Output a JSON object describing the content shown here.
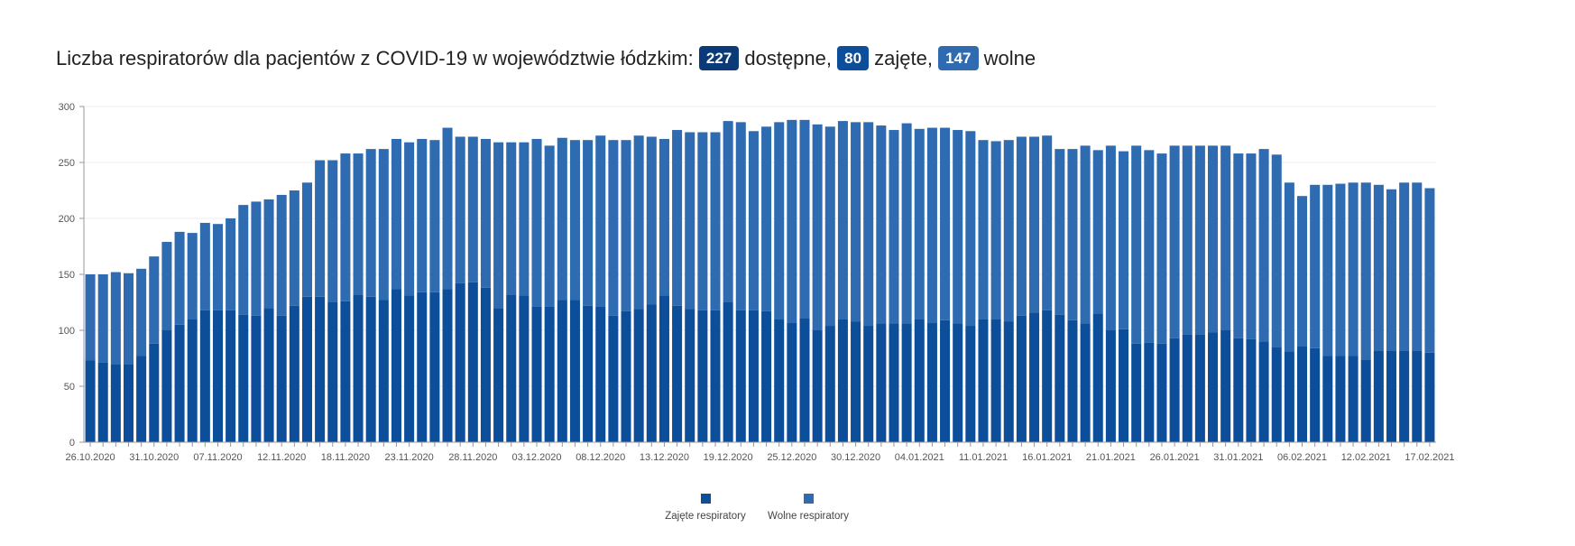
{
  "header": {
    "title_text": "Liczba respiratorów dla pacjentów z COVID-19 w województwie łódzkim:",
    "available_value": "227",
    "available_label": "dostępne,",
    "occupied_value": "80",
    "occupied_label": "zajęte,",
    "free_value": "147",
    "free_label": "wolne"
  },
  "colors": {
    "occupied": "#0d4e9b",
    "free": "#2f6bb0",
    "badge_available": "#0b3a78",
    "badge_occupied": "#0d4e9b",
    "badge_free": "#2f6bb0",
    "gridline": "#eeeeee",
    "axis": "#999999"
  },
  "chart_data": {
    "type": "bar",
    "stacked": true,
    "ylim": [
      0,
      300
    ],
    "yticks": [
      0,
      50,
      100,
      150,
      200,
      250,
      300
    ],
    "xlabel": "",
    "ylabel": "",
    "grid": true,
    "legend_position": "bottom-center",
    "x_tick_labels": [
      "26.10.2020",
      "31.10.2020",
      "07.11.2020",
      "12.11.2020",
      "18.11.2020",
      "23.11.2020",
      "28.11.2020",
      "03.12.2020",
      "08.12.2020",
      "13.12.2020",
      "19.12.2020",
      "25.12.2020",
      "30.12.2020",
      "04.01.2021",
      "11.01.2021",
      "16.01.2021",
      "21.01.2021",
      "26.01.2021",
      "31.01.2021",
      "06.02.2021",
      "12.02.2021",
      "17.02.2021"
    ],
    "x_tick_bar_index": [
      0,
      5,
      10,
      15,
      20,
      25,
      30,
      35,
      40,
      45,
      50,
      55,
      60,
      65,
      70,
      75,
      80,
      85,
      90,
      95,
      100,
      105
    ],
    "series": [
      {
        "name": "Zajęte respiratory",
        "color": "#0d4e9b",
        "values": [
          73,
          71,
          70,
          70,
          77,
          88,
          100,
          105,
          110,
          118,
          118,
          118,
          114,
          113,
          120,
          113,
          122,
          130,
          130,
          125,
          126,
          132,
          130,
          127,
          137,
          131,
          134,
          134,
          137,
          142,
          143,
          138,
          120,
          132,
          131,
          121,
          121,
          127,
          127,
          122,
          121,
          113,
          117,
          119,
          123,
          131,
          122,
          119,
          118,
          118,
          125,
          118,
          118,
          117,
          110,
          107,
          111,
          100,
          104,
          110,
          108,
          104,
          106,
          106,
          106,
          110,
          107,
          109,
          106,
          104,
          110,
          110,
          108,
          113,
          116,
          118,
          114,
          109,
          106,
          115,
          100,
          101,
          88,
          89,
          88,
          93,
          96,
          96,
          98,
          100,
          93,
          92,
          90,
          85,
          81,
          86,
          84,
          77,
          77,
          77,
          74,
          82,
          82,
          82,
          82,
          80
        ]
      },
      {
        "name": "Wolne respiratory",
        "color": "#2f6bb0",
        "values": [
          77,
          79,
          82,
          81,
          78,
          78,
          79,
          83,
          77,
          78,
          77,
          82,
          98,
          102,
          97,
          108,
          103,
          102,
          122,
          127,
          132,
          126,
          132,
          135,
          134,
          137,
          137,
          136,
          144,
          131,
          130,
          133,
          148,
          136,
          137,
          150,
          144,
          145,
          143,
          148,
          153,
          157,
          153,
          155,
          150,
          140,
          157,
          158,
          159,
          159,
          162,
          168,
          160,
          165,
          176,
          181,
          177,
          184,
          178,
          177,
          178,
          182,
          177,
          173,
          179,
          170,
          174,
          172,
          173,
          174,
          160,
          159,
          162,
          160,
          157,
          156,
          148,
          153,
          159,
          146,
          165,
          159,
          177,
          172,
          170,
          172,
          169,
          169,
          167,
          165,
          165,
          166,
          172,
          172,
          151,
          134,
          146,
          153,
          154,
          155,
          158,
          148,
          144,
          150,
          150,
          147
        ]
      }
    ]
  }
}
